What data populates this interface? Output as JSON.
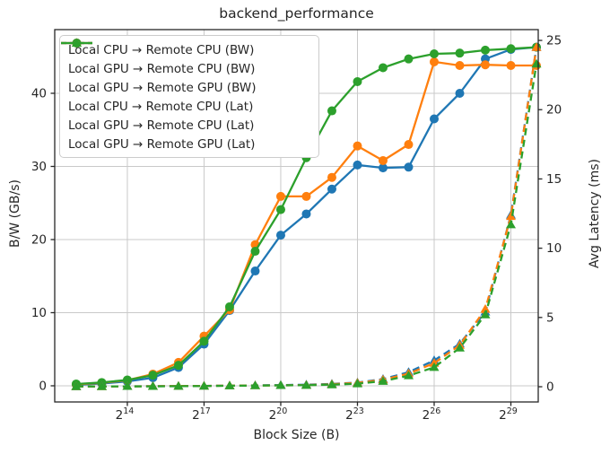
{
  "chart_data": {
    "type": "line",
    "title": "backend_performance",
    "xlabel": "Block Size (B)",
    "ylabel_left": "B/W (GB/s)",
    "ylabel_right": "Avg Latency (ms)",
    "x_scale": "log2",
    "grid": true,
    "legend_position": "upper left",
    "x_exponents": [
      12,
      13,
      14,
      15,
      16,
      17,
      18,
      19,
      20,
      21,
      22,
      23,
      24,
      25,
      26,
      27,
      28,
      29,
      30
    ],
    "x_tick_exponents": [
      14,
      17,
      20,
      23,
      26,
      29
    ],
    "x_tick_base": "2",
    "y_left_ticks": [
      0,
      10,
      20,
      30,
      40
    ],
    "y_right_ticks": [
      0,
      5,
      10,
      15,
      20,
      25
    ],
    "x_range_exponents": [
      11.16,
      30.07
    ],
    "y_left_range": [
      -2.21,
      48.71
    ],
    "y_right_range": [
      -1.1,
      25.78
    ],
    "colors": {
      "blue": "#1f77b4",
      "orange": "#ff7f0e",
      "green": "#2ca02c",
      "grid": "#c9c9c9",
      "spine": "#262626",
      "text": "#262626"
    },
    "series": [
      {
        "name": "Local CPU → Remote CPU (BW)",
        "color": "#1f77b4",
        "line": "solid",
        "marker": "circle",
        "axis": "left",
        "values": [
          0.15,
          0.3,
          0.6,
          1.1,
          2.5,
          5.7,
          10.3,
          15.7,
          20.6,
          23.5,
          26.9,
          30.2,
          29.8,
          29.9,
          36.5,
          40.0,
          44.7,
          46.0,
          46.3
        ]
      },
      {
        "name": "Local GPU → Remote CPU (BW)",
        "color": "#ff7f0e",
        "line": "solid",
        "marker": "circle",
        "axis": "left",
        "values": [
          0.2,
          0.4,
          0.75,
          1.6,
          3.2,
          6.8,
          10.4,
          19.3,
          25.9,
          25.9,
          28.5,
          32.8,
          30.8,
          33.0,
          44.3,
          43.8,
          43.9,
          43.8,
          43.8
        ]
      },
      {
        "name": "Local GPU → Remote GPU (BW)",
        "color": "#2ca02c",
        "line": "solid",
        "marker": "circle",
        "axis": "left",
        "values": [
          0.25,
          0.45,
          0.8,
          1.45,
          2.8,
          6.1,
          10.8,
          18.4,
          24.1,
          31.2,
          37.6,
          41.6,
          43.5,
          44.7,
          45.4,
          45.5,
          45.9,
          46.1,
          46.3
        ]
      },
      {
        "name": "Local CPU → Remote CPU (Lat)",
        "color": "#1f77b4",
        "line": "dashed",
        "marker": "triangle",
        "axis": "right",
        "values": [
          0.02,
          0.03,
          0.03,
          0.04,
          0.05,
          0.06,
          0.08,
          0.1,
          0.12,
          0.15,
          0.2,
          0.3,
          0.55,
          1.05,
          1.9,
          3.1,
          5.4,
          12.4,
          24.5
        ]
      },
      {
        "name": "Local GPU → Remote CPU (Lat)",
        "color": "#ff7f0e",
        "line": "dashed",
        "marker": "triangle",
        "axis": "right",
        "values": [
          0.02,
          0.02,
          0.03,
          0.04,
          0.05,
          0.06,
          0.08,
          0.09,
          0.1,
          0.12,
          0.18,
          0.28,
          0.5,
          0.95,
          1.7,
          3.0,
          5.6,
          12.3,
          24.5
        ]
      },
      {
        "name": "Local GPU → Remote GPU (Lat)",
        "color": "#2ca02c",
        "line": "dashed",
        "marker": "triangle",
        "axis": "right",
        "values": [
          0.02,
          0.02,
          0.03,
          0.03,
          0.04,
          0.05,
          0.07,
          0.08,
          0.1,
          0.11,
          0.15,
          0.22,
          0.4,
          0.8,
          1.4,
          2.8,
          5.2,
          11.7,
          23.3
        ]
      }
    ]
  }
}
